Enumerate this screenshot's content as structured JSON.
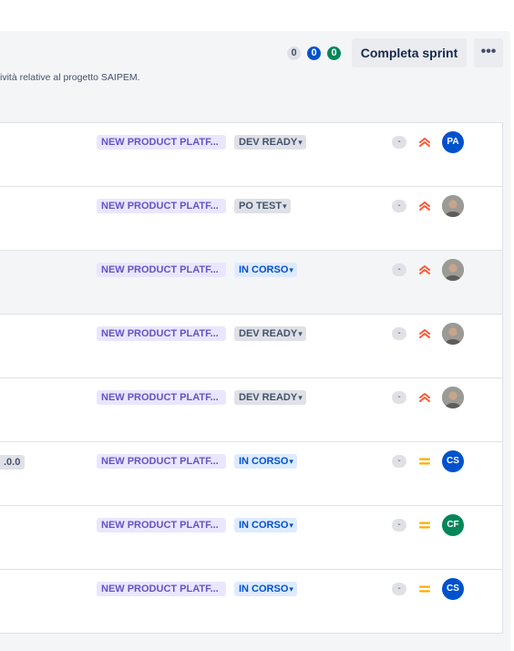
{
  "header": {
    "subtitle": "ività relative al progetto SAIPEM.",
    "counters": {
      "todo": "0",
      "in_progress": "0",
      "done": "0"
    },
    "complete_sprint_label": "Completa sprint",
    "more_label": "•••"
  },
  "colors": {
    "epic_bg": "#eae6ff",
    "epic_text": "#6554c0",
    "status_gray_bg": "#dfe1e6",
    "status_blue_bg": "#deebff",
    "status_blue_text": "#0052cc",
    "priority_high": "#ff5630",
    "priority_medium": "#ffab00"
  },
  "issues": [
    {
      "epic": "NEW PRODUCT PLATF...",
      "status": "DEV READY",
      "status_tone": "gray",
      "estimate": "-",
      "priority_icon": "priority-high-icon",
      "assignee": "PA",
      "assignee_color": "#0052cc",
      "version": ""
    },
    {
      "epic": "NEW PRODUCT PLATF...",
      "status": "PO TEST",
      "status_tone": "gray",
      "estimate": "-",
      "priority_icon": "priority-high-icon",
      "assignee": "",
      "assignee_color": "",
      "version": ""
    },
    {
      "epic": "NEW PRODUCT PLATF...",
      "status": "IN CORSO",
      "status_tone": "blue",
      "estimate": "-",
      "priority_icon": "priority-high-icon",
      "assignee": "",
      "assignee_color": "",
      "version": ""
    },
    {
      "epic": "NEW PRODUCT PLATF...",
      "status": "DEV READY",
      "status_tone": "gray",
      "estimate": "-",
      "priority_icon": "priority-high-icon",
      "assignee": "",
      "assignee_color": "",
      "version": ""
    },
    {
      "epic": "NEW PRODUCT PLATF...",
      "status": "DEV READY",
      "status_tone": "gray",
      "estimate": "-",
      "priority_icon": "priority-high-icon",
      "assignee": "",
      "assignee_color": "",
      "version": ""
    },
    {
      "epic": "NEW PRODUCT PLATF...",
      "status": "IN CORSO",
      "status_tone": "blue",
      "estimate": "-",
      "priority_icon": "priority-medium-icon",
      "assignee": "CS",
      "assignee_color": "#0052cc",
      "version": ".0.0"
    },
    {
      "epic": "NEW PRODUCT PLATF...",
      "status": "IN CORSO",
      "status_tone": "blue",
      "estimate": "-",
      "priority_icon": "priority-medium-icon",
      "assignee": "CF",
      "assignee_color": "#00875a",
      "version": ""
    },
    {
      "epic": "NEW PRODUCT PLATF...",
      "status": "IN CORSO",
      "status_tone": "blue",
      "estimate": "-",
      "priority_icon": "priority-medium-icon",
      "assignee": "CS",
      "assignee_color": "#0052cc",
      "version": ""
    }
  ]
}
